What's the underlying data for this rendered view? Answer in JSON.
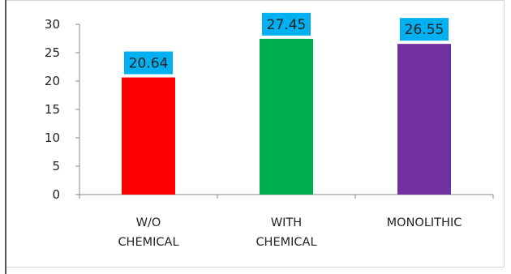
{
  "chart_data": {
    "type": "bar",
    "categories": [
      [
        "W/O",
        "CHEMICAL"
      ],
      [
        "WITH",
        "CHEMICAL"
      ],
      [
        "MONOLITHIC"
      ]
    ],
    "values": [
      20.64,
      27.45,
      26.55
    ],
    "data_labels": [
      "20.64",
      "27.45",
      "26.55"
    ],
    "bar_colors": [
      "#ff0000",
      "#00b050",
      "#7030a0"
    ],
    "label_box_color": "#00b0f0",
    "ylim": [
      0,
      30
    ],
    "yticks": [
      "0",
      "5",
      "10",
      "15",
      "20",
      "25",
      "30"
    ],
    "title": "",
    "xlabel": "",
    "ylabel": "",
    "grid": false,
    "legend": "none"
  }
}
